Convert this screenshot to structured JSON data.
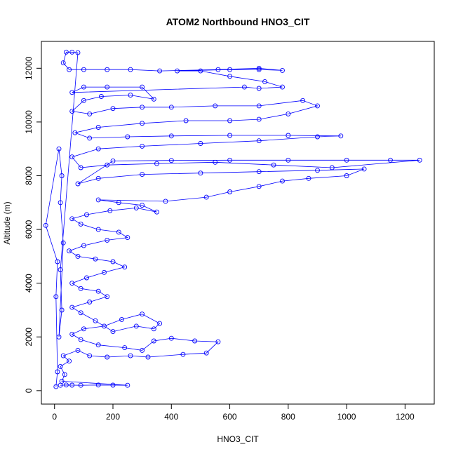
{
  "chart_data": {
    "type": "scatter",
    "title": "ATOM2 Northbound HNO3_CIT",
    "xlabel": "HNO3_CIT",
    "ylabel": "Altitude (m)",
    "xlim": [
      -45,
      1300
    ],
    "ylim": [
      -500,
      13000
    ],
    "xticks": [
      0,
      200,
      400,
      600,
      800,
      1000,
      1200
    ],
    "yticks": [
      0,
      2000,
      4000,
      6000,
      8000,
      10000,
      12000
    ],
    "xtick_labels": [
      "0",
      "200",
      "400",
      "600",
      "800",
      "1000",
      "1200"
    ],
    "ytick_labels": [
      "0",
      "2000",
      "4000",
      "6000",
      "8000",
      "10000",
      "12000"
    ],
    "marker": "open-circle",
    "connected": true,
    "grid": false,
    "legend": "none",
    "color": "#0000ff",
    "series": [
      {
        "points": [
          [
            20,
            200
          ],
          [
            40,
            210
          ],
          [
            60,
            205
          ],
          [
            90,
            200
          ],
          [
            150,
            210
          ],
          [
            200,
            205
          ],
          [
            250,
            200
          ],
          [
            25,
            350
          ],
          [
            35,
            600
          ],
          [
            20,
            900
          ],
          [
            50,
            1100
          ],
          [
            30,
            1300
          ],
          [
            80,
            1500
          ],
          [
            120,
            1300
          ],
          [
            180,
            1250
          ],
          [
            260,
            1300
          ],
          [
            320,
            1250
          ],
          [
            440,
            1350
          ],
          [
            520,
            1400
          ],
          [
            560,
            1820
          ],
          [
            480,
            1850
          ],
          [
            400,
            1950
          ],
          [
            340,
            1850
          ],
          [
            300,
            1500
          ],
          [
            240,
            1600
          ],
          [
            150,
            1700
          ],
          [
            90,
            1900
          ],
          [
            60,
            2100
          ],
          [
            100,
            2300
          ],
          [
            170,
            2400
          ],
          [
            230,
            2650
          ],
          [
            300,
            2850
          ],
          [
            360,
            2500
          ],
          [
            340,
            2300
          ],
          [
            280,
            2400
          ],
          [
            200,
            2200
          ],
          [
            140,
            2600
          ],
          [
            90,
            2900
          ],
          [
            60,
            3100
          ],
          [
            120,
            3300
          ],
          [
            180,
            3500
          ],
          [
            150,
            3700
          ],
          [
            90,
            3800
          ],
          [
            60,
            4000
          ],
          [
            110,
            4200
          ],
          [
            170,
            4400
          ],
          [
            240,
            4600
          ],
          [
            200,
            4800
          ],
          [
            140,
            4900
          ],
          [
            80,
            5000
          ],
          [
            50,
            5200
          ],
          [
            100,
            5400
          ],
          [
            180,
            5600
          ],
          [
            250,
            5700
          ],
          [
            220,
            5900
          ],
          [
            150,
            6000
          ],
          [
            90,
            6200
          ],
          [
            60,
            6400
          ],
          [
            110,
            6550
          ],
          [
            190,
            6700
          ],
          [
            280,
            6800
          ],
          [
            350,
            6650
          ],
          [
            300,
            6900
          ],
          [
            220,
            7000
          ],
          [
            150,
            7100
          ],
          [
            380,
            7050
          ],
          [
            520,
            7200
          ],
          [
            600,
            7400
          ],
          [
            700,
            7600
          ],
          [
            780,
            7800
          ],
          [
            870,
            7900
          ],
          [
            1000,
            8000
          ],
          [
            1060,
            8250
          ],
          [
            900,
            8200
          ],
          [
            700,
            8150
          ],
          [
            500,
            8100
          ],
          [
            300,
            8050
          ],
          [
            150,
            7900
          ],
          [
            80,
            7700
          ],
          [
            200,
            8550
          ],
          [
            400,
            8570
          ],
          [
            600,
            8580
          ],
          [
            800,
            8580
          ],
          [
            1000,
            8580
          ],
          [
            1150,
            8580
          ],
          [
            1250,
            8580
          ],
          [
            950,
            8300
          ],
          [
            750,
            8400
          ],
          [
            550,
            8500
          ],
          [
            350,
            8450
          ],
          [
            180,
            8400
          ],
          [
            90,
            8300
          ],
          [
            60,
            8700
          ],
          [
            150,
            9000
          ],
          [
            300,
            9100
          ],
          [
            500,
            9200
          ],
          [
            700,
            9300
          ],
          [
            900,
            9450
          ],
          [
            980,
            9480
          ],
          [
            800,
            9500
          ],
          [
            600,
            9500
          ],
          [
            400,
            9480
          ],
          [
            250,
            9450
          ],
          [
            120,
            9400
          ],
          [
            70,
            9600
          ],
          [
            150,
            9800
          ],
          [
            300,
            9950
          ],
          [
            450,
            10050
          ],
          [
            600,
            10050
          ],
          [
            700,
            10100
          ],
          [
            800,
            10300
          ],
          [
            900,
            10600
          ],
          [
            850,
            10800
          ],
          [
            700,
            10600
          ],
          [
            550,
            10600
          ],
          [
            400,
            10550
          ],
          [
            300,
            10550
          ],
          [
            200,
            10500
          ],
          [
            120,
            10300
          ],
          [
            60,
            10400
          ],
          [
            100,
            10800
          ],
          [
            160,
            10950
          ],
          [
            260,
            11000
          ],
          [
            340,
            10850
          ],
          [
            300,
            11300
          ],
          [
            180,
            11300
          ],
          [
            100,
            11300
          ],
          [
            60,
            11100
          ],
          [
            650,
            11300
          ],
          [
            700,
            11250
          ],
          [
            780,
            11300
          ],
          [
            720,
            11500
          ],
          [
            600,
            11700
          ],
          [
            500,
            11900
          ],
          [
            420,
            11900
          ],
          [
            600,
            11950
          ],
          [
            700,
            11950
          ],
          [
            780,
            11920
          ],
          [
            700,
            12000
          ],
          [
            560,
            11950
          ],
          [
            360,
            11900
          ],
          [
            260,
            11950
          ],
          [
            180,
            11950
          ],
          [
            100,
            11950
          ],
          [
            50,
            11950
          ],
          [
            30,
            12200
          ],
          [
            40,
            12600
          ],
          [
            60,
            12600
          ],
          [
            80,
            12580
          ],
          [
            20,
            4500
          ],
          [
            25,
            3000
          ],
          [
            15,
            2000
          ],
          [
            30,
            5500
          ],
          [
            20,
            7000
          ],
          [
            25,
            8000
          ],
          [
            15,
            9000
          ],
          [
            -30,
            6150
          ],
          [
            10,
            4800
          ],
          [
            5,
            3500
          ],
          [
            10,
            700
          ],
          [
            5,
            150
          ]
        ]
      }
    ]
  }
}
